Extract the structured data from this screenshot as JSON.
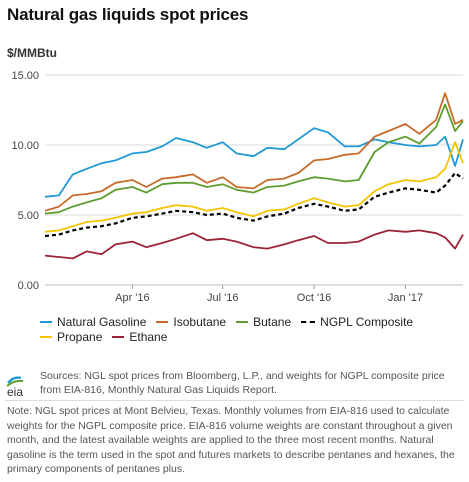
{
  "header": {
    "title": "Natural gas liquids spot prices",
    "y_unit": "$/MMBtu"
  },
  "chart_data": {
    "type": "line",
    "title": "Natural gas liquids spot prices",
    "ylabel": "$/MMBtu",
    "xlabel": "",
    "ylim": [
      0,
      15
    ],
    "y_ticks": [
      "0.00",
      "5.00",
      "10.00",
      "15.00"
    ],
    "x_ticks": [
      "Apr '16",
      "Jul '16",
      "Oct '16",
      "Jan '17"
    ],
    "x_tick_dates": [
      "2016-04-01",
      "2016-07-01",
      "2016-10-01",
      "2017-01-01"
    ],
    "x_range": [
      "2016-01-04",
      "2017-02-28"
    ],
    "grid": "horizontal",
    "legend_position": "bottom",
    "x": [
      "2016-01-04",
      "2016-01-18",
      "2016-02-01",
      "2016-02-15",
      "2016-03-01",
      "2016-03-15",
      "2016-04-01",
      "2016-04-15",
      "2016-05-01",
      "2016-05-15",
      "2016-06-01",
      "2016-06-15",
      "2016-07-01",
      "2016-07-15",
      "2016-08-01",
      "2016-08-15",
      "2016-09-01",
      "2016-09-15",
      "2016-10-01",
      "2016-10-15",
      "2016-11-01",
      "2016-11-15",
      "2016-12-01",
      "2016-12-15",
      "2017-01-01",
      "2017-01-15",
      "2017-02-01",
      "2017-02-10",
      "2017-02-20",
      "2017-02-28"
    ],
    "series": [
      {
        "name": "Natural Gasoline",
        "color": "#1f9ad6",
        "dash": false,
        "values": [
          6.3,
          6.4,
          7.9,
          8.3,
          8.7,
          8.9,
          9.4,
          9.5,
          9.9,
          10.5,
          10.2,
          9.8,
          10.2,
          9.4,
          9.2,
          9.8,
          9.7,
          10.4,
          11.2,
          10.9,
          9.9,
          9.9,
          10.4,
          10.2,
          10.0,
          9.9,
          10.0,
          10.6,
          8.5,
          10.4
        ]
      },
      {
        "name": "Isobutane",
        "color": "#c76b2a",
        "dash": false,
        "values": [
          5.3,
          5.6,
          6.4,
          6.5,
          6.7,
          7.3,
          7.5,
          7.0,
          7.6,
          7.7,
          7.9,
          7.3,
          7.7,
          7.0,
          6.9,
          7.5,
          7.6,
          8.0,
          8.9,
          9.0,
          9.3,
          9.4,
          10.6,
          11.0,
          11.5,
          10.8,
          11.8,
          13.7,
          11.5,
          11.8
        ]
      },
      {
        "name": "Butane",
        "color": "#5e9e2f",
        "dash": false,
        "values": [
          5.1,
          5.2,
          5.6,
          5.9,
          6.2,
          6.8,
          7.0,
          6.6,
          7.2,
          7.3,
          7.3,
          7.0,
          7.2,
          6.8,
          6.6,
          7.0,
          7.1,
          7.4,
          7.7,
          7.6,
          7.4,
          7.5,
          9.5,
          10.2,
          10.6,
          10.1,
          11.3,
          12.9,
          11.0,
          11.7
        ]
      },
      {
        "name": "NGPL Composite",
        "color": "#000000",
        "dash": true,
        "values": [
          3.5,
          3.6,
          3.9,
          4.1,
          4.2,
          4.4,
          4.8,
          4.9,
          5.1,
          5.3,
          5.2,
          5.0,
          5.1,
          4.8,
          4.6,
          4.9,
          5.1,
          5.5,
          5.8,
          5.6,
          5.3,
          5.4,
          6.3,
          6.6,
          6.9,
          6.8,
          6.6,
          7.1,
          8.0,
          7.6
        ]
      },
      {
        "name": "Propane",
        "color": "#f5c400",
        "dash": false,
        "values": [
          3.8,
          3.9,
          4.2,
          4.5,
          4.6,
          4.8,
          5.1,
          5.2,
          5.5,
          5.7,
          5.6,
          5.3,
          5.5,
          5.2,
          4.9,
          5.3,
          5.4,
          5.8,
          6.2,
          5.9,
          5.6,
          5.7,
          6.7,
          7.2,
          7.5,
          7.4,
          7.7,
          8.3,
          10.2,
          8.7
        ]
      },
      {
        "name": "Ethane",
        "color": "#9b2335",
        "dash": false,
        "values": [
          2.1,
          2.0,
          1.9,
          2.4,
          2.2,
          2.9,
          3.1,
          2.7,
          3.0,
          3.3,
          3.7,
          3.2,
          3.3,
          3.1,
          2.7,
          2.6,
          2.9,
          3.2,
          3.5,
          3.0,
          3.0,
          3.1,
          3.6,
          3.9,
          3.8,
          3.9,
          3.7,
          3.4,
          2.6,
          3.6
        ]
      }
    ]
  },
  "legend": {
    "row1": [
      "Natural Gasoline",
      "Isobutane",
      "Butane",
      "NGPL Composite"
    ],
    "row2": [
      "Propane",
      "Ethane"
    ]
  },
  "footer": {
    "logo_text": "eia",
    "sources": "Sources: NGL spot prices from Bloomberg, L.P., and weights for NGPL composite price from EIA-816, Monthly Natural Gas Liquids Report.",
    "note": "Note: NGL spot prices at Mont Belvieu, Texas. Monthly volumes from EIA-816 used to calculate weights for the NGPL composite price. EIA-816 volume weights are constant throughout a given month, and the latest available weights are applied to the three most recent months. Natural gasoline is the term used in the spot and futures markets to describe pentanes and hexanes, the primary components of pentanes plus."
  },
  "colors": {
    "natural_gasoline": "#1f9ad6",
    "isobutane": "#c76b2a",
    "butane": "#5e9e2f",
    "ngpl_composite": "#000000",
    "propane": "#f5c400",
    "ethane": "#9b2335",
    "grid": "#d9d9d9"
  }
}
